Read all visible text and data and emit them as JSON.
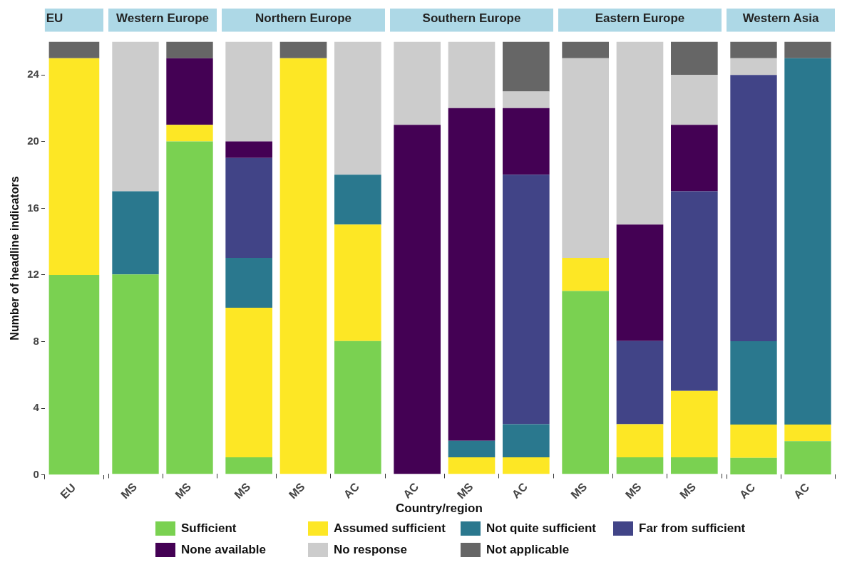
{
  "chart_data": [
    {
      "type": "bar",
      "title": "EU",
      "categories": [
        "EU"
      ],
      "stacked": true,
      "ylabel": "Number of headline indicators",
      "legend": "bottom",
      "ylim": [
        0,
        26
      ],
      "yticks": [
        0,
        4,
        8,
        12,
        16,
        20,
        24
      ],
      "grid": false,
      "series": [
        {
          "name": "Sufficient",
          "color": "#7ad151",
          "values": [
            12
          ]
        },
        {
          "name": "Assumed sufficient",
          "color": "#fde725",
          "values": [
            13
          ]
        },
        {
          "name": "Not quite sufficient",
          "color": "#2a788e",
          "values": [
            0
          ]
        },
        {
          "name": "Far from sufficient",
          "color": "#414487",
          "values": [
            0
          ]
        },
        {
          "name": "None available",
          "color": "#440154",
          "values": [
            0
          ]
        },
        {
          "name": "No response",
          "color": "#cccccc",
          "values": [
            0
          ]
        },
        {
          "name": "Not applicable",
          "color": "#666666",
          "values": [
            1
          ]
        }
      ]
    },
    {
      "type": "bar",
      "title": "Western Europe",
      "categories": [
        "MS",
        "MS"
      ],
      "stacked": true,
      "ylim": [
        0,
        26
      ],
      "tick_labels": "x",
      "grid": false,
      "series": [
        {
          "color": "#7ad151",
          "values": [
            12,
            20
          ]
        },
        {
          "color": "#fde725",
          "values": [
            0,
            1
          ]
        },
        {
          "color": "#2a788e",
          "values": [
            5,
            0
          ]
        },
        {
          "color": "#414487",
          "values": [
            0,
            0
          ]
        },
        {
          "color": "#440154",
          "values": [
            0,
            4
          ]
        },
        {
          "color": "#cccccc",
          "values": [
            9,
            0
          ]
        },
        {
          "color": "#666666",
          "values": [
            0,
            1
          ]
        }
      ]
    },
    {
      "type": "bar",
      "title": "Northern Europe",
      "categories": [
        "MS",
        "MS",
        "AC"
      ],
      "stacked": true,
      "ylim": [
        0,
        26
      ],
      "tick_labels": "x",
      "grid": false,
      "series": [
        {
          "color": "#7ad151",
          "values": [
            1,
            0,
            8
          ]
        },
        {
          "color": "#fde725",
          "values": [
            9,
            25,
            7
          ]
        },
        {
          "color": "#2a788e",
          "values": [
            3,
            0,
            3
          ]
        },
        {
          "color": "#414487",
          "values": [
            6,
            0,
            0
          ]
        },
        {
          "color": "#440154",
          "values": [
            1,
            0,
            0
          ]
        },
        {
          "color": "#cccccc",
          "values": [
            6,
            0,
            8
          ]
        },
        {
          "color": "#666666",
          "values": [
            0,
            1,
            0
          ]
        }
      ]
    },
    {
      "type": "bar",
      "title": "Southern Europe",
      "categories": [
        "AC",
        "MS",
        "AC"
      ],
      "stacked": true,
      "xlabel": "Country/region",
      "ylim": [
        0,
        26
      ],
      "tick_labels": "x",
      "grid": false,
      "series": [
        {
          "color": "#7ad151",
          "values": [
            0,
            0,
            0
          ]
        },
        {
          "color": "#fde725",
          "values": [
            0,
            1,
            1
          ]
        },
        {
          "color": "#2a788e",
          "values": [
            0,
            1,
            2
          ]
        },
        {
          "color": "#414487",
          "values": [
            0,
            0,
            15
          ]
        },
        {
          "color": "#440154",
          "values": [
            21,
            20,
            4
          ]
        },
        {
          "color": "#cccccc",
          "values": [
            5,
            4,
            1
          ]
        },
        {
          "color": "#666666",
          "values": [
            0,
            0,
            3
          ]
        }
      ]
    },
    {
      "type": "bar",
      "title": "Eastern Europe",
      "categories": [
        "MS",
        "MS",
        "MS"
      ],
      "stacked": true,
      "ylim": [
        0,
        26
      ],
      "tick_labels": "x",
      "grid": false,
      "series": [
        {
          "color": "#7ad151",
          "values": [
            11,
            1,
            1
          ]
        },
        {
          "color": "#fde725",
          "values": [
            2,
            2,
            4
          ]
        },
        {
          "color": "#2a788e",
          "values": [
            0,
            0,
            0
          ]
        },
        {
          "color": "#414487",
          "values": [
            0,
            5,
            12
          ]
        },
        {
          "color": "#440154",
          "values": [
            0,
            7,
            4
          ]
        },
        {
          "color": "#cccccc",
          "values": [
            12,
            11,
            3
          ]
        },
        {
          "color": "#666666",
          "values": [
            1,
            0,
            2
          ]
        }
      ]
    },
    {
      "type": "bar",
      "title": "Western Asia",
      "categories": [
        "AC",
        "AC"
      ],
      "stacked": true,
      "ylim": [
        0,
        26
      ],
      "tick_labels": "x",
      "grid": false,
      "series": [
        {
          "color": "#7ad151",
          "values": [
            1,
            2
          ]
        },
        {
          "color": "#fde725",
          "values": [
            2,
            1
          ]
        },
        {
          "color": "#2a788e",
          "values": [
            5,
            22
          ]
        },
        {
          "color": "#414487",
          "values": [
            16,
            0
          ]
        },
        {
          "color": "#440154",
          "values": [
            0,
            0
          ]
        },
        {
          "color": "#cccccc",
          "values": [
            1,
            0
          ]
        },
        {
          "color": "#666666",
          "values": [
            1,
            1
          ]
        }
      ]
    }
  ]
}
